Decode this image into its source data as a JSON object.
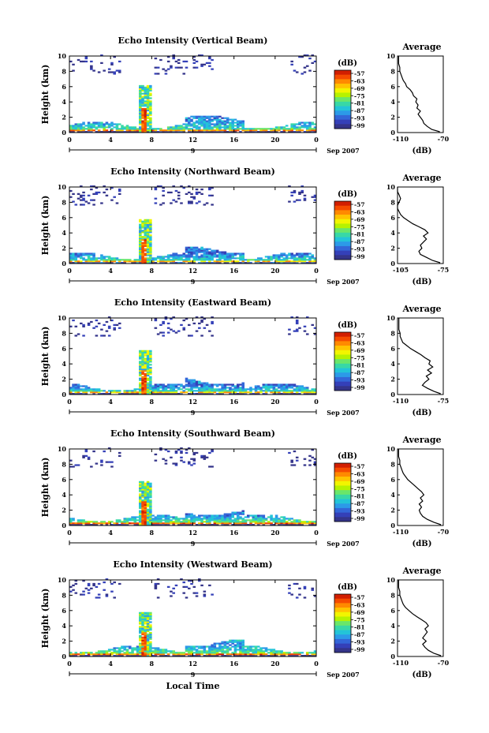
{
  "figure": {
    "x_axis_title": "Local Time",
    "colorbar_unit": "(dB)",
    "colorbar_ticks": [
      "-57",
      "-63",
      "-69",
      "-75",
      "-81",
      "-87",
      "-93",
      "-99"
    ],
    "colorbar_colors": [
      "#d21f00",
      "#f54b00",
      "#ff8a00",
      "#ffc400",
      "#f2f500",
      "#b6f200",
      "#6ae66a",
      "#38d8a6",
      "#23c4d8",
      "#2c9ae8",
      "#3366d8",
      "#3440b8",
      "#34348a"
    ],
    "avg_title": "Average",
    "avg_xlabel": "(dB)",
    "date_label": "9",
    "date_suffix": "Sep 2007"
  },
  "chart_data": [
    {
      "type": "heatmap",
      "title": "Echo Intensity (Vertical Beam)",
      "ylabel": "Height (km)",
      "xlabel": "Local Time",
      "xlim": [
        0,
        24
      ],
      "ylim": [
        0,
        10
      ],
      "xticks": [
        "0",
        "4",
        "8",
        "12",
        "16",
        "20",
        "0"
      ],
      "yticks": [
        "0",
        "2",
        "4",
        "6",
        "8",
        "10"
      ],
      "colorbar": {
        "unit": "(dB)",
        "range": [
          -99,
          -57
        ]
      },
      "average": {
        "type": "line",
        "title": "Average",
        "xlabel": "(dB)",
        "xlim": [
          -110,
          -70
        ],
        "xticks": [
          "-110",
          "-70"
        ],
        "yticks": [
          "0",
          "2",
          "4",
          "6",
          "8",
          "10"
        ],
        "x": [
          -73,
          -80,
          -84,
          -87,
          -88,
          -90,
          -92,
          -90,
          -93,
          -92,
          -94,
          -93,
          -96,
          -97,
          -99,
          -102,
          -103,
          -105,
          -106,
          -107,
          -108,
          -108,
          -109,
          -109,
          -109,
          -109
        ],
        "y": [
          0.1,
          0.4,
          0.8,
          1.2,
          1.6,
          2.0,
          2.4,
          2.8,
          3.2,
          3.6,
          4.0,
          4.4,
          4.8,
          5.2,
          5.6,
          6.0,
          6.4,
          6.8,
          7.2,
          7.6,
          8.0,
          8.5,
          9.0,
          9.4,
          9.8,
          10.0
        ]
      }
    },
    {
      "type": "heatmap",
      "title": "Echo Intensity (Northward Beam)",
      "ylabel": "Height (km)",
      "xlabel": "Local Time",
      "xlim": [
        0,
        24
      ],
      "ylim": [
        0,
        10
      ],
      "xticks": [
        "0",
        "4",
        "8",
        "12",
        "16",
        "20",
        "0"
      ],
      "yticks": [
        "0",
        "2",
        "4",
        "6",
        "8",
        "10"
      ],
      "colorbar": {
        "unit": "(dB)",
        "range": [
          -99,
          -57
        ]
      },
      "average": {
        "type": "line",
        "title": "Average",
        "xlabel": "(dB)",
        "xlim": [
          -105,
          -75
        ],
        "xticks": [
          "-105",
          "-75"
        ],
        "yticks": [
          "0",
          "2",
          "4",
          "6",
          "8",
          "10"
        ],
        "x": [
          -77,
          -82,
          -86,
          -90,
          -91,
          -89,
          -90,
          -88,
          -86,
          -88,
          -85,
          -87,
          -91,
          -95,
          -98,
          -101,
          -103,
          -104,
          -105,
          -105,
          -104,
          -103,
          -104,
          -105,
          -105,
          -105
        ],
        "y": [
          0.1,
          0.4,
          0.8,
          1.2,
          1.6,
          2.0,
          2.4,
          2.8,
          3.2,
          3.6,
          4.0,
          4.4,
          4.8,
          5.2,
          5.6,
          6.0,
          6.4,
          6.8,
          7.2,
          7.6,
          8.0,
          8.5,
          9.0,
          9.4,
          9.8,
          10.0
        ]
      }
    },
    {
      "type": "heatmap",
      "title": "Echo Intensity (Eastward Beam)",
      "ylabel": "Height (km)",
      "xlabel": "Local Time",
      "xlim": [
        0,
        24
      ],
      "ylim": [
        0,
        10
      ],
      "xticks": [
        "0",
        "4",
        "8",
        "12",
        "16",
        "20",
        "0"
      ],
      "yticks": [
        "0",
        "2",
        "4",
        "6",
        "8",
        "10"
      ],
      "colorbar": {
        "unit": "(dB)",
        "range": [
          -99,
          -57
        ]
      },
      "average": {
        "type": "line",
        "title": "Average",
        "xlabel": "(dB)",
        "xlim": [
          -110,
          -75
        ],
        "xticks": [
          "-110",
          "-75"
        ],
        "yticks": [
          "0",
          "2",
          "4",
          "6",
          "8",
          "10"
        ],
        "x": [
          -77,
          -82,
          -87,
          -91,
          -89,
          -86,
          -88,
          -84,
          -87,
          -83,
          -86,
          -85,
          -89,
          -92,
          -96,
          -100,
          -103,
          -106,
          -107,
          -108,
          -108,
          -109,
          -109,
          -109,
          -109,
          -109
        ],
        "y": [
          0.1,
          0.4,
          0.8,
          1.2,
          1.6,
          2.0,
          2.4,
          2.8,
          3.2,
          3.6,
          4.0,
          4.4,
          4.8,
          5.2,
          5.6,
          6.0,
          6.4,
          6.8,
          7.2,
          7.6,
          8.0,
          8.5,
          9.0,
          9.4,
          9.8,
          10.0
        ]
      }
    },
    {
      "type": "heatmap",
      "title": "Echo Intensity (Southward Beam)",
      "ylabel": "Height (km)",
      "xlabel": "Local Time",
      "xlim": [
        0,
        24
      ],
      "ylim": [
        0,
        10
      ],
      "xticks": [
        "0",
        "4",
        "8",
        "12",
        "16",
        "20",
        "0"
      ],
      "yticks": [
        "0",
        "2",
        "4",
        "6",
        "8",
        "10"
      ],
      "colorbar": {
        "unit": "(dB)",
        "range": [
          -99,
          -57
        ]
      },
      "average": {
        "type": "line",
        "title": "Average",
        "xlabel": "(dB)",
        "xlim": [
          -110,
          -70
        ],
        "xticks": [
          "-110",
          "-70"
        ],
        "yticks": [
          "0",
          "2",
          "4",
          "6",
          "8",
          "10"
        ],
        "x": [
          -72,
          -78,
          -84,
          -88,
          -90,
          -91,
          -89,
          -91,
          -88,
          -90,
          -87,
          -89,
          -92,
          -95,
          -98,
          -101,
          -103,
          -105,
          -106,
          -107,
          -108,
          -108,
          -109,
          -109,
          -109,
          -109
        ],
        "y": [
          0.1,
          0.4,
          0.8,
          1.2,
          1.6,
          2.0,
          2.4,
          2.8,
          3.2,
          3.6,
          4.0,
          4.4,
          4.8,
          5.2,
          5.6,
          6.0,
          6.4,
          6.8,
          7.2,
          7.6,
          8.0,
          8.5,
          9.0,
          9.4,
          9.8,
          10.0
        ]
      }
    },
    {
      "type": "heatmap",
      "title": "Echo Intensity (Westward Beam)",
      "ylabel": "Height (km)",
      "xlabel": "Local Time",
      "xlim": [
        0,
        24
      ],
      "ylim": [
        0,
        10
      ],
      "xticks": [
        "0",
        "4",
        "8",
        "12",
        "16",
        "20",
        "0"
      ],
      "yticks": [
        "0",
        "2",
        "4",
        "6",
        "8",
        "10"
      ],
      "colorbar": {
        "unit": "(dB)",
        "range": [
          -99,
          -57
        ]
      },
      "average": {
        "type": "line",
        "title": "Average",
        "xlabel": "(dB)",
        "xlim": [
          -110,
          -70
        ],
        "xticks": [
          "-110",
          "-70"
        ],
        "yticks": [
          "0",
          "2",
          "4",
          "6",
          "8",
          "10"
        ],
        "x": [
          -72,
          -78,
          -83,
          -86,
          -88,
          -85,
          -88,
          -86,
          -84,
          -86,
          -83,
          -85,
          -89,
          -93,
          -97,
          -100,
          -103,
          -105,
          -106,
          -107,
          -108,
          -108,
          -109,
          -109,
          -109,
          -109
        ],
        "y": [
          0.1,
          0.4,
          0.8,
          1.2,
          1.6,
          2.0,
          2.4,
          2.8,
          3.2,
          3.6,
          4.0,
          4.4,
          4.8,
          5.2,
          5.6,
          6.0,
          6.4,
          6.8,
          7.2,
          7.6,
          8.0,
          8.5,
          9.0,
          9.4,
          9.8,
          10.0
        ]
      }
    }
  ]
}
